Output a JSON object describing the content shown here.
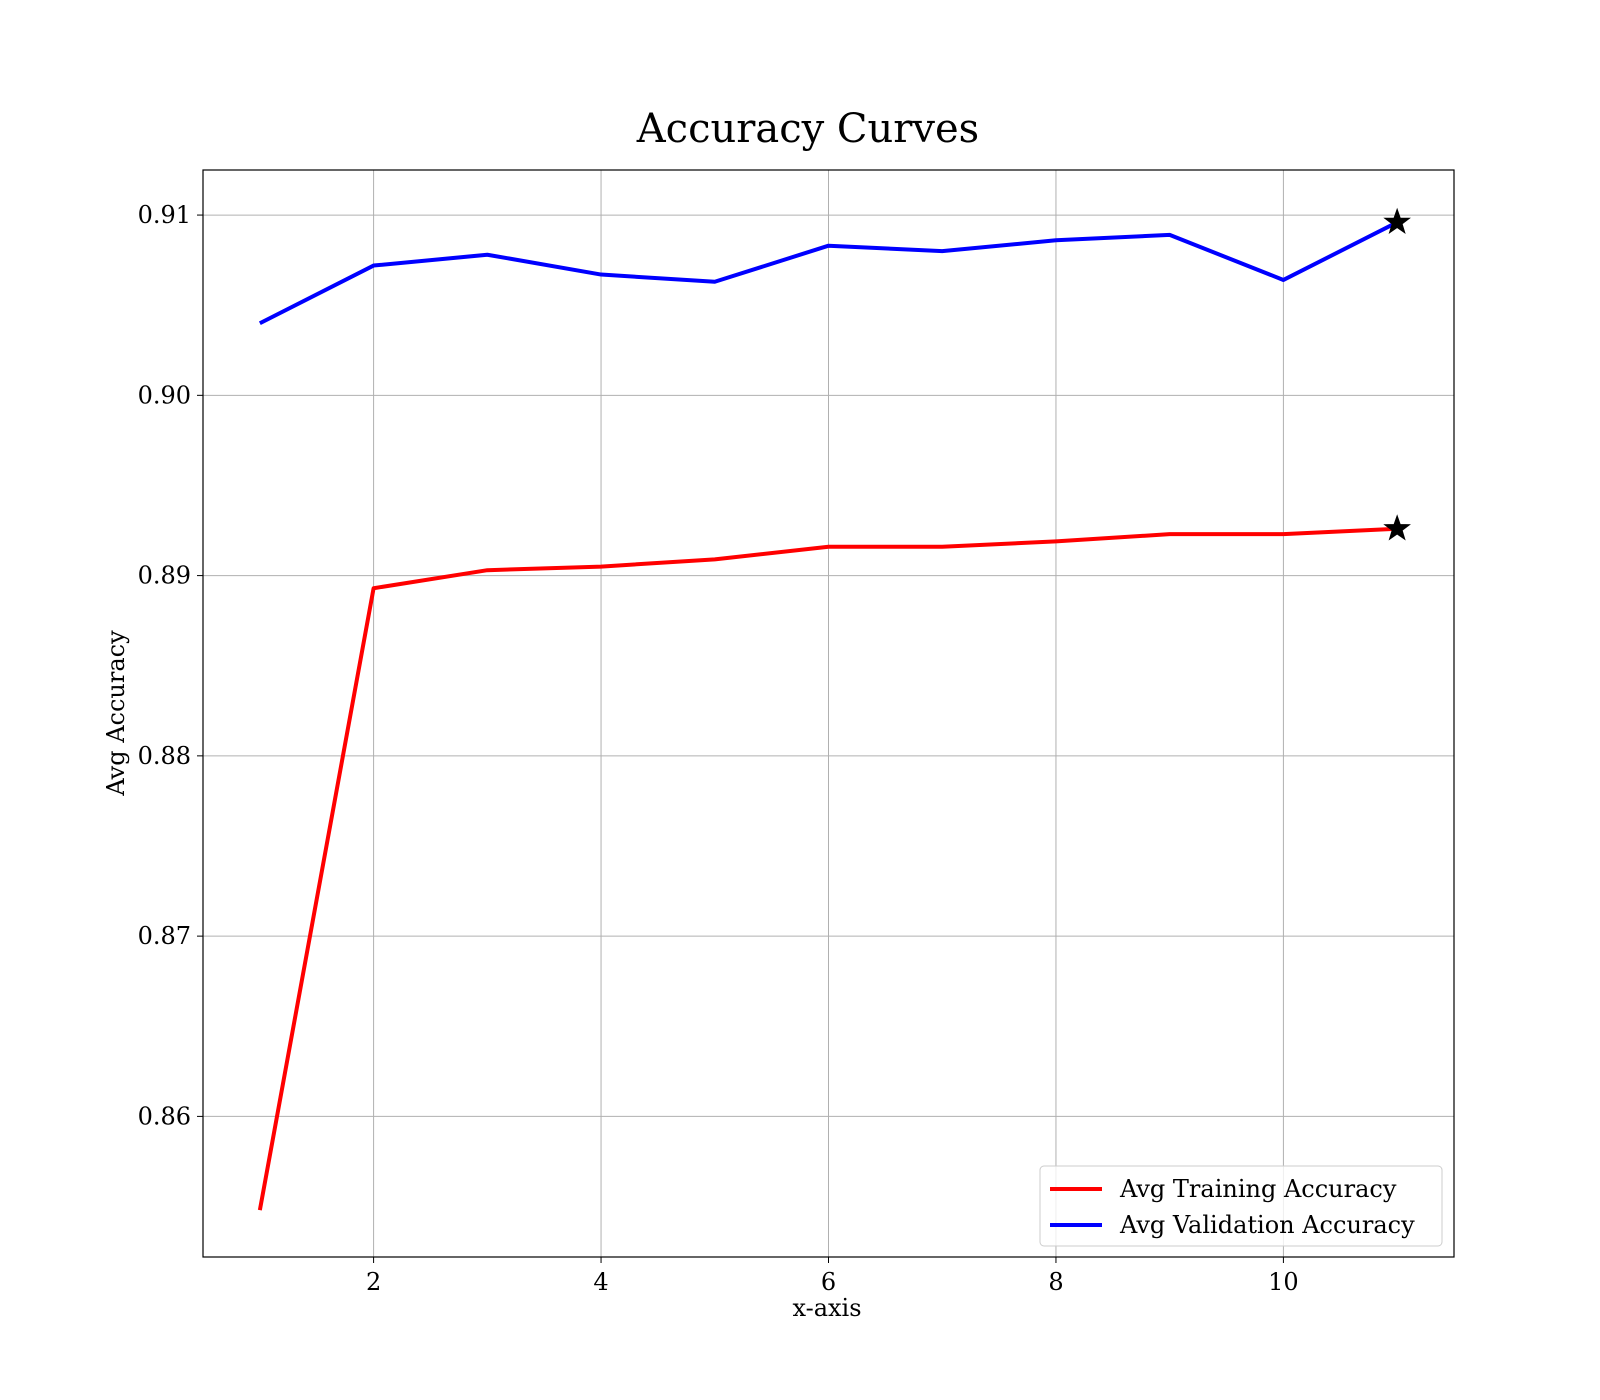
{
  "chart_data": {
    "type": "line",
    "title": "Accuracy Curves",
    "xlabel": "x-axis",
    "ylabel": "Avg Accuracy",
    "xlim": [
      0.5,
      11.5
    ],
    "ylim": [
      0.8522,
      0.9125
    ],
    "xticks": [
      2,
      4,
      6,
      8,
      10
    ],
    "xtick_labels": [
      "2",
      "4",
      "6",
      "8",
      "10"
    ],
    "yticks": [
      0.86,
      0.87,
      0.88,
      0.89,
      0.9,
      0.91
    ],
    "ytick_labels": [
      "0.86",
      "0.87",
      "0.88",
      "0.89",
      "0.90",
      "0.91"
    ],
    "grid": true,
    "legend_position": "lower-right",
    "x": [
      1,
      2,
      3,
      4,
      5,
      6,
      7,
      8,
      9,
      10,
      11
    ],
    "series": [
      {
        "name": "Avg Training Accuracy",
        "color": "#ff0000",
        "values": [
          0.8548,
          0.8893,
          0.8903,
          0.8905,
          0.8909,
          0.8916,
          0.8916,
          0.8919,
          0.8923,
          0.8923,
          0.8926
        ],
        "best_marker": "star",
        "best_index": 10
      },
      {
        "name": "Avg Validation Accuracy",
        "color": "#0000ff",
        "values": [
          0.904,
          0.9072,
          0.9078,
          0.9067,
          0.9063,
          0.9083,
          0.908,
          0.9086,
          0.9089,
          0.9064,
          0.9096
        ],
        "best_marker": "star",
        "best_index": 10
      }
    ]
  }
}
